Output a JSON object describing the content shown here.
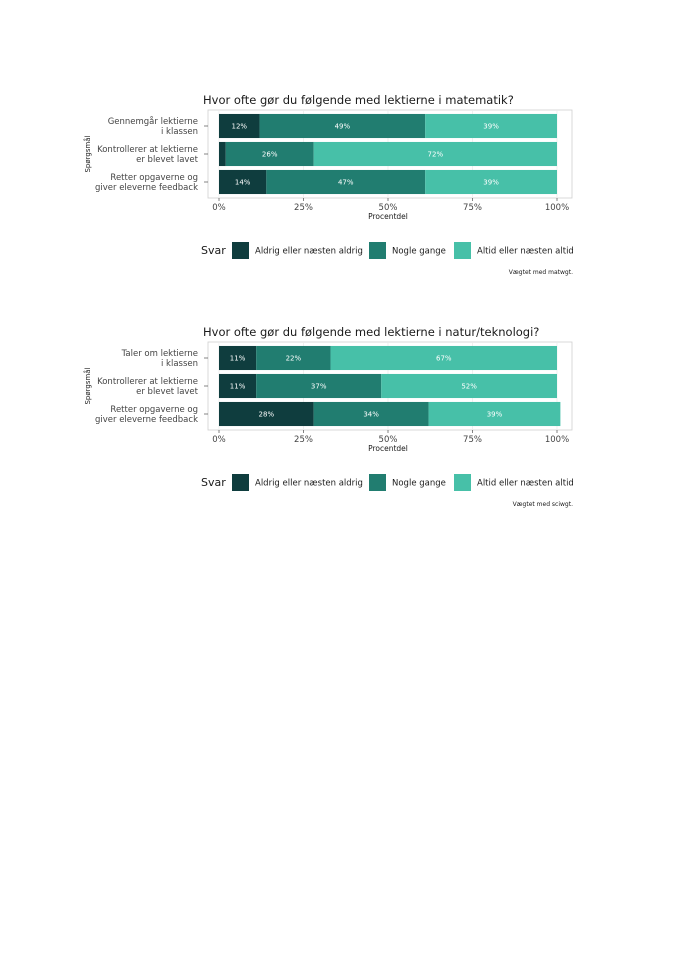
{
  "chart_data": [
    {
      "type": "bar",
      "orientation": "horizontal",
      "stacked": true,
      "title": "Hvor ofte gør du følgende med lektierne i matematik?",
      "ylabel": "Spørgsmål",
      "xlabel": "Procentdel",
      "xlim": [
        0,
        100
      ],
      "xticks": [
        "0%",
        "25%",
        "50%",
        "75%",
        "100%"
      ],
      "categories": [
        [
          "Gennemgår lektierne",
          "i klassen"
        ],
        [
          "Kontrollerer at lektierne",
          "er blevet lavet"
        ],
        [
          "Retter opgaverne og",
          "giver eleverne feedback"
        ]
      ],
      "series": [
        {
          "name": "Aldrig eller næsten aldrig",
          "color": "#0f3d3e",
          "values": [
            12,
            2,
            14
          ],
          "labels": [
            "12%",
            "",
            "14%"
          ]
        },
        {
          "name": "Nogle gange",
          "color": "#217d70",
          "values": [
            49,
            26,
            47
          ],
          "labels": [
            "49%",
            "26%",
            "47%"
          ]
        },
        {
          "name": "Altid eller næsten altid",
          "color": "#47c0a8",
          "values": [
            39,
            72,
            39
          ],
          "labels": [
            "39%",
            "72%",
            "39%"
          ]
        }
      ],
      "legend_title": "Svar",
      "legend_position": "bottom",
      "grid": true,
      "note": "Vægtet med matwgt."
    },
    {
      "type": "bar",
      "orientation": "horizontal",
      "stacked": true,
      "title": "Hvor ofte gør du følgende med lektierne i natur/teknologi?",
      "ylabel": "Spørgsmål",
      "xlabel": "Procentdel",
      "xlim": [
        0,
        100
      ],
      "xticks": [
        "0%",
        "25%",
        "50%",
        "75%",
        "100%"
      ],
      "categories": [
        [
          "Taler om lektierne",
          "i klassen"
        ],
        [
          "Kontrollerer at lektierne",
          "er blevet lavet"
        ],
        [
          "Retter opgaverne og",
          "giver eleverne feedback"
        ]
      ],
      "series": [
        {
          "name": "Aldrig eller næsten aldrig",
          "color": "#0f3d3e",
          "values": [
            11,
            11,
            28
          ],
          "labels": [
            "11%",
            "11%",
            "28%"
          ]
        },
        {
          "name": "Nogle gange",
          "color": "#217d70",
          "values": [
            22,
            37,
            34
          ],
          "labels": [
            "22%",
            "37%",
            "34%"
          ]
        },
        {
          "name": "Altid eller næsten altid",
          "color": "#47c0a8",
          "values": [
            67,
            52,
            39
          ],
          "labels": [
            "67%",
            "52%",
            "39%"
          ]
        }
      ],
      "legend_title": "Svar",
      "legend_position": "bottom",
      "grid": true,
      "note": "Vægtet med sciwgt."
    }
  ]
}
